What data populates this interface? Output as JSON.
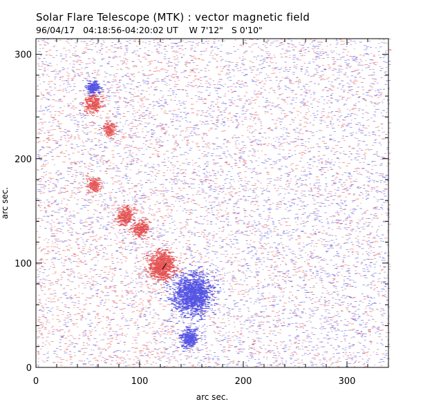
{
  "chart_data": {
    "type": "heatmap",
    "title": "Solar Flare Telescope (MTK) : vector magnetic field",
    "subtitle": {
      "date": "96/04/17",
      "time_range": "04:18:56-04:20:02 UT",
      "longitude": "W 7'12\"",
      "latitude": "S 0'10\""
    },
    "xlabel": "arc sec.",
    "ylabel": "arc sec.",
    "xlim": [
      0,
      340
    ],
    "ylim": [
      0,
      315
    ],
    "x_ticks": [
      {
        "value": 0,
        "label": "0"
      },
      {
        "value": 100,
        "label": "100"
      },
      {
        "value": 200,
        "label": "200"
      },
      {
        "value": 300,
        "label": "300"
      }
    ],
    "y_ticks": [
      {
        "value": 0,
        "label": "0"
      },
      {
        "value": 100,
        "label": "100"
      },
      {
        "value": 200,
        "label": "200"
      },
      {
        "value": 300,
        "label": "300"
      }
    ],
    "colors": {
      "positive_polarity": "#e23b3b",
      "negative_polarity": "#3a3ae0",
      "transverse_vector": "#000000"
    },
    "features": [
      {
        "polarity": "positive",
        "x": 120,
        "y": 97,
        "sigma": 6,
        "strength": 1.0
      },
      {
        "polarity": "negative",
        "x": 150,
        "y": 70,
        "sigma": 9,
        "strength": 1.0
      },
      {
        "polarity": "negative",
        "x": 147,
        "y": 28,
        "sigma": 4,
        "strength": 0.5
      },
      {
        "polarity": "positive",
        "x": 85,
        "y": 145,
        "sigma": 4,
        "strength": 0.45
      },
      {
        "polarity": "positive",
        "x": 100,
        "y": 133,
        "sigma": 4,
        "strength": 0.4
      },
      {
        "polarity": "positive",
        "x": 55,
        "y": 175,
        "sigma": 3,
        "strength": 0.35
      },
      {
        "polarity": "positive",
        "x": 55,
        "y": 253,
        "sigma": 4,
        "strength": 0.4
      },
      {
        "polarity": "negative",
        "x": 55,
        "y": 268,
        "sigma": 3,
        "strength": 0.45
      },
      {
        "polarity": "positive",
        "x": 70,
        "y": 228,
        "sigma": 3,
        "strength": 0.3
      }
    ]
  }
}
